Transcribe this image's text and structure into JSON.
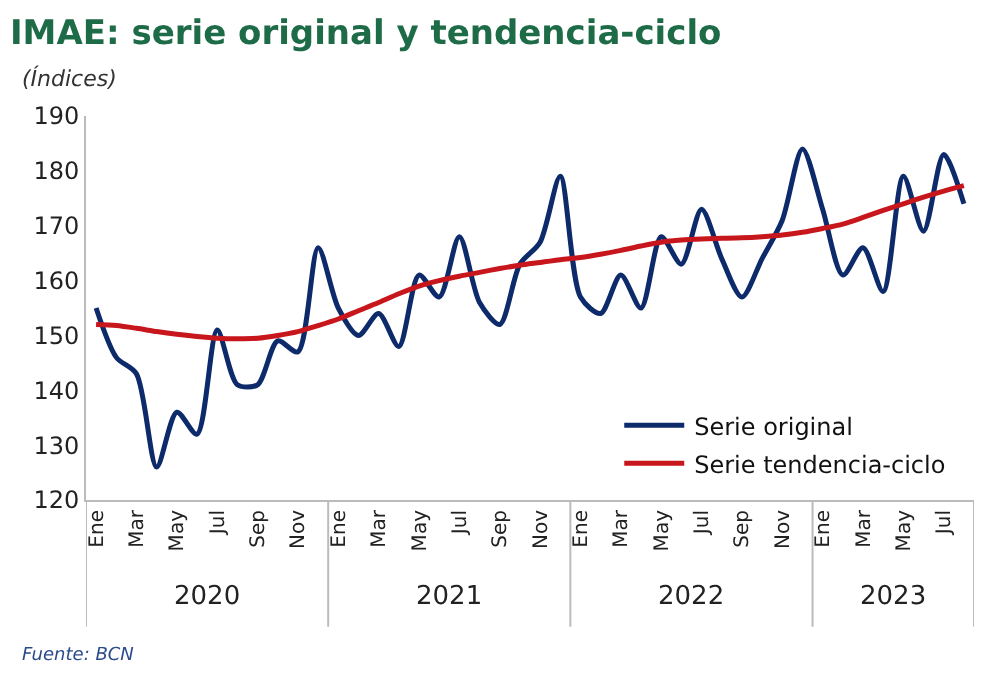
{
  "chart_data": {
    "type": "line",
    "title": "IMAE: serie original y tendencia-ciclo",
    "subtitle": "(Índices)",
    "categories": [
      "Ene",
      null,
      "Mar",
      null,
      "May",
      null,
      "Jul",
      null,
      "Sep",
      null,
      "Nov",
      null,
      "Ene",
      null,
      "Mar",
      null,
      "May",
      null,
      "Jul",
      null,
      "Sep",
      null,
      "Nov",
      null,
      "Ene",
      null,
      "Mar",
      null,
      "May",
      null,
      "Jul",
      null,
      "Sep",
      null,
      "Nov",
      null,
      "Ene",
      null,
      "Mar",
      null,
      "May",
      null,
      "Jul",
      null
    ],
    "series": [
      {
        "name": "Serie original",
        "color": "#0d2a6b",
        "values": [
          155,
          146,
          143,
          126,
          136,
          132,
          151,
          141,
          141,
          149,
          147,
          166,
          155,
          150,
          154,
          148,
          161,
          157,
          168,
          156,
          152,
          163,
          167,
          179,
          157,
          154,
          161,
          155,
          168,
          163,
          173,
          164,
          157,
          164,
          171,
          184,
          173,
          161,
          166,
          158,
          179,
          169,
          183,
          174
        ]
      },
      {
        "name": "Serie tendencia-ciclo",
        "color": "#c8161d",
        "values": [
          152,
          151.8,
          151.3,
          150.7,
          150.2,
          149.8,
          149.5,
          149.4,
          149.5,
          150,
          150.7,
          151.8,
          153,
          154.5,
          156,
          157.6,
          159,
          160,
          160.8,
          161.5,
          162.2,
          162.8,
          163.3,
          163.8,
          164.2,
          164.8,
          165.5,
          166.3,
          167,
          167.4,
          167.6,
          167.7,
          167.8,
          168,
          168.3,
          168.8,
          169.5,
          170.3,
          171.5,
          172.8,
          174,
          175.2,
          176.3,
          177.3
        ]
      }
    ],
    "ylim": [
      120,
      190
    ],
    "yticks": [
      120,
      130,
      140,
      150,
      160,
      170,
      180,
      190
    ],
    "grid": false,
    "legend": "bottom right",
    "marker": "none",
    "line_style": "solid",
    "annotations": [
      "2020",
      "2021",
      "2022",
      "2023",
      "Fuente: BCN"
    ]
  }
}
